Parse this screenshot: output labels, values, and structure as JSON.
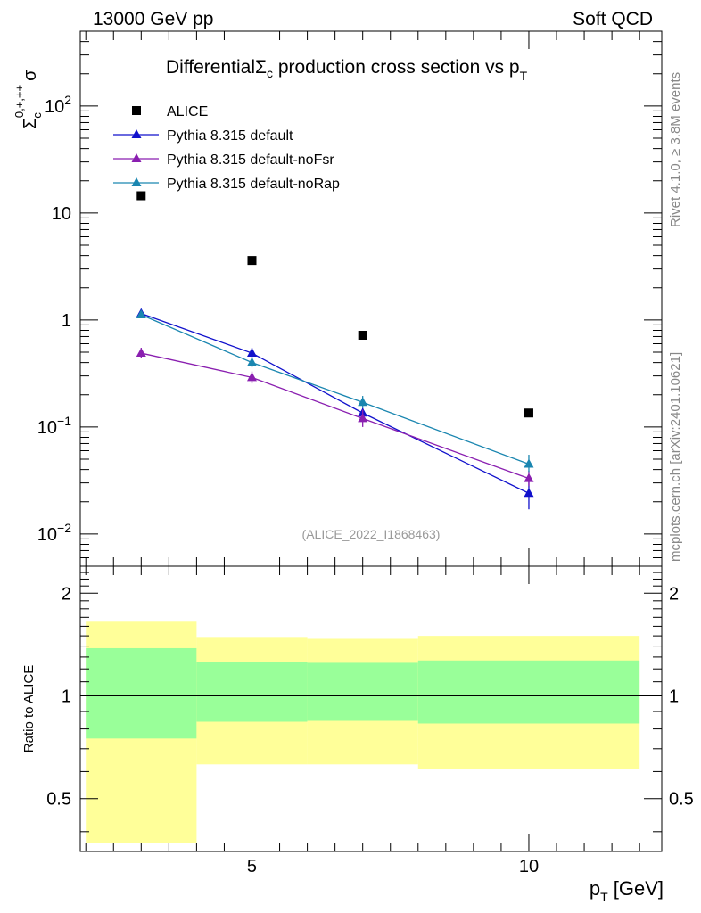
{
  "header": {
    "energy_label": "13000 GeV pp",
    "process_label": "Soft QCD"
  },
  "side_labels": {
    "rivet": "Rivet 4.1.0, ≥ 3.8M events",
    "mcplots": "mcplots.cern.ch [arXiv:2401.10621]"
  },
  "chart_data": [
    {
      "type": "scatter",
      "title": "DifferentialΣc production cross section vs pT",
      "title_parts": {
        "pre": "Differential",
        "sigma": "Σ",
        "sub_c": "c",
        "mid": " production cross section vs p",
        "sub_t": "T"
      },
      "ylabel": "Σc0,+,++ σ",
      "ylabel_parts": {
        "sigma": "Σ",
        "sub": "c",
        "sup": "0,+,++",
        "tail": "σ"
      },
      "yscale": "log",
      "ylim": [
        0.005,
        500
      ],
      "xlim": [
        1.9,
        12.4
      ],
      "y_ticks": [
        {
          "value": 100,
          "base": "10",
          "exp": "2"
        },
        {
          "value": 10,
          "base": "10",
          "exp": ""
        },
        {
          "value": 1,
          "base": "1",
          "exp": ""
        },
        {
          "value": 0.1,
          "base": "10",
          "exp": "−1"
        },
        {
          "value": 0.01,
          "base": "10",
          "exp": "−2"
        }
      ],
      "analysis_tag": "(ALICE_2022_I1868463)",
      "legend_position": "top-left",
      "series": [
        {
          "name": "ALICE",
          "kind": "data",
          "color": "#000000",
          "marker": "square",
          "x": [
            3,
            5,
            7,
            10
          ],
          "y": [
            14.5,
            3.6,
            0.72,
            0.135
          ]
        },
        {
          "name": "Pythia 8.315 default",
          "kind": "mc",
          "color": "#1111cc",
          "marker": "triangle",
          "x": [
            3,
            5,
            7,
            10
          ],
          "y": [
            1.15,
            0.49,
            0.135,
            0.024
          ],
          "err_low": [
            0.03,
            0.05,
            0.015,
            0.007
          ],
          "err_high": [
            0.03,
            0.06,
            0.015,
            0.008
          ]
        },
        {
          "name": "Pythia 8.315 default-noFsr",
          "kind": "mc",
          "color": "#8a1fb0",
          "marker": "triangle",
          "x": [
            3,
            5,
            7,
            10
          ],
          "y": [
            0.49,
            0.29,
            0.12,
            0.033
          ],
          "err_low": [
            0.05,
            0.035,
            0.02,
            0.005
          ],
          "err_high": [
            0.06,
            0.04,
            0.025,
            0.006
          ]
        },
        {
          "name": "Pythia 8.315 default-noRap",
          "kind": "mc",
          "color": "#1a86b0",
          "marker": "triangle",
          "x": [
            3,
            5,
            7,
            10
          ],
          "y": [
            1.12,
            0.4,
            0.17,
            0.045
          ],
          "err_low": [
            0.03,
            0.04,
            0.02,
            0.007
          ],
          "err_high": [
            0.03,
            0.04,
            0.025,
            0.01
          ]
        }
      ]
    },
    {
      "type": "area",
      "ylabel": "Ratio to ALICE",
      "xlabel": "pT [GeV]",
      "xlabel_parts": {
        "pre": "p",
        "sub": "T",
        "post": " [GeV]"
      },
      "yscale": "log",
      "ylim": [
        0.35,
        2.4
      ],
      "xlim": [
        1.9,
        12.4
      ],
      "y_ticks": [
        2,
        1,
        0.5
      ],
      "x_ticks": [
        5,
        10
      ],
      "reference_line": 1,
      "bands": [
        {
          "x_low": 2,
          "x_high": 4,
          "yellow_low": 0.37,
          "yellow_high": 1.65,
          "green_low": 0.75,
          "green_high": 1.38
        },
        {
          "x_low": 4,
          "x_high": 6,
          "yellow_low": 0.63,
          "yellow_high": 1.48,
          "green_low": 0.84,
          "green_high": 1.26
        },
        {
          "x_low": 6,
          "x_high": 8,
          "yellow_low": 0.63,
          "yellow_high": 1.47,
          "green_low": 0.845,
          "green_high": 1.25
        },
        {
          "x_low": 8,
          "x_high": 12,
          "yellow_low": 0.61,
          "yellow_high": 1.5,
          "green_low": 0.83,
          "green_high": 1.27
        }
      ],
      "colors": {
        "yellow": "#ffff99",
        "green": "#99ff99"
      }
    }
  ]
}
